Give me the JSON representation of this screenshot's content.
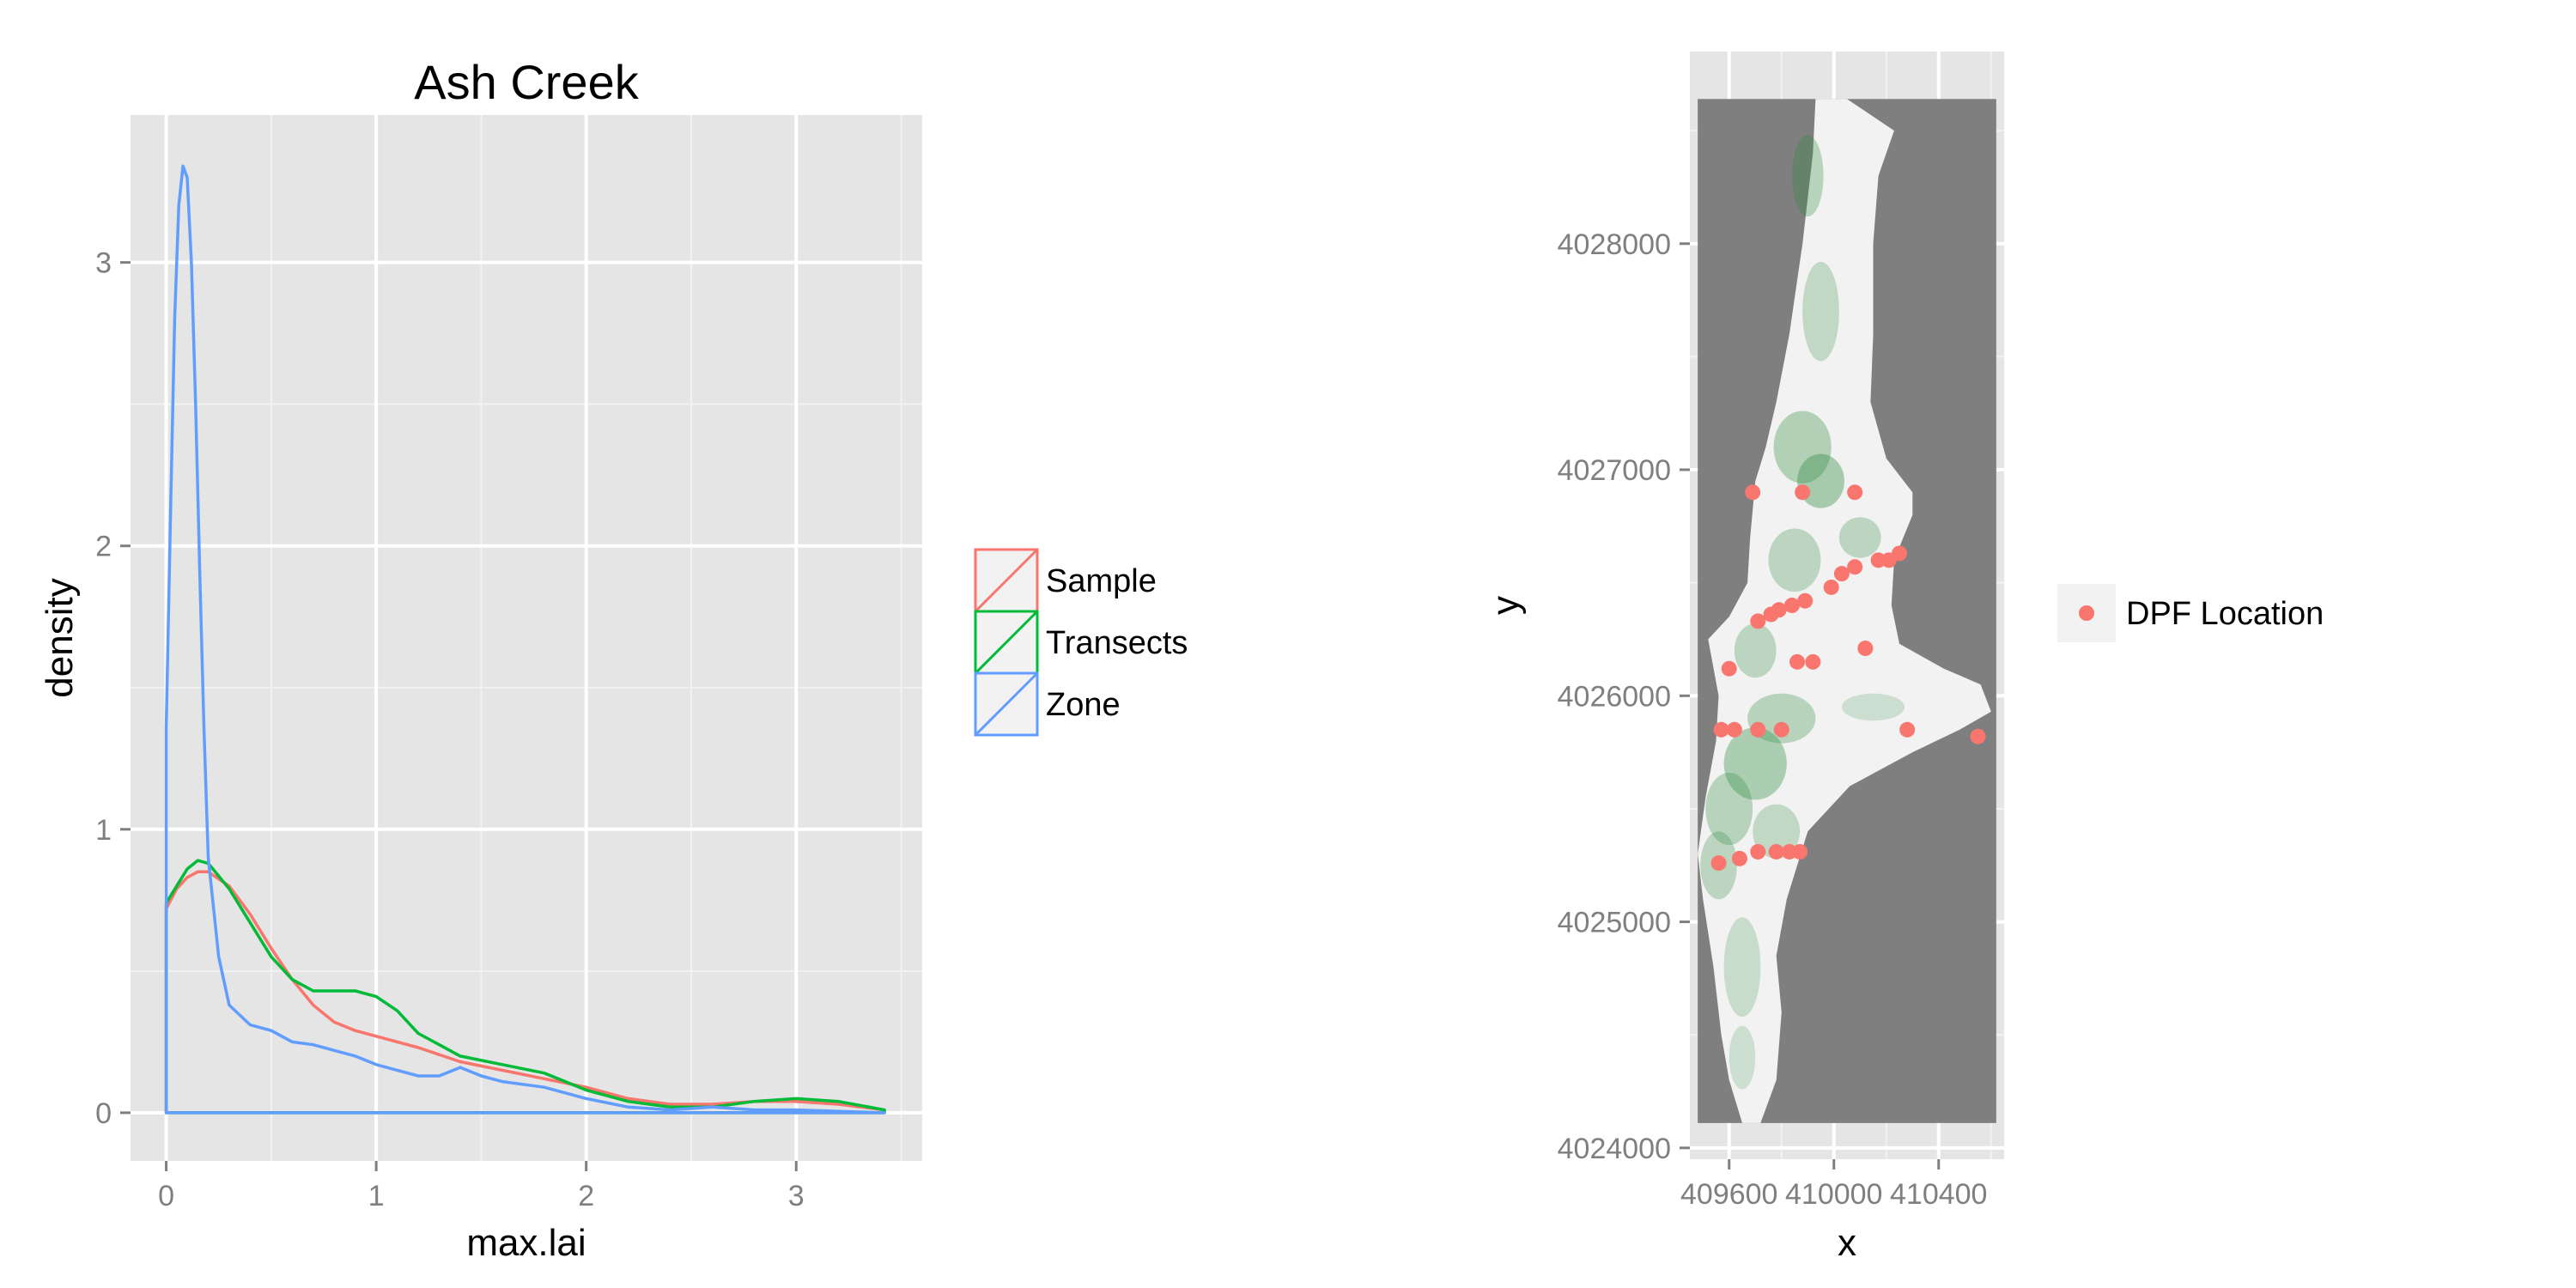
{
  "chart_data": [
    {
      "type": "line",
      "subtype": "density",
      "title": "Ash Creek",
      "xlabel": "max.lai",
      "ylabel": "density",
      "xlim": [
        -0.17,
        3.6
      ],
      "ylim": [
        -0.17,
        3.52
      ],
      "x_ticks": [
        0,
        1,
        2,
        3
      ],
      "x_tick_labels": [
        "0",
        "1",
        "2",
        "3"
      ],
      "y_ticks": [
        0,
        1,
        2,
        3
      ],
      "y_tick_labels": [
        "0",
        "1",
        "2",
        "3"
      ],
      "grid": true,
      "legend": {
        "placement": "right",
        "entries": [
          "Sample",
          "Transects",
          "Zone"
        ]
      },
      "series": [
        {
          "name": "Sample",
          "color": "#F8766D",
          "x": [
            0,
            0.05,
            0.1,
            0.15,
            0.2,
            0.3,
            0.4,
            0.5,
            0.6,
            0.7,
            0.8,
            0.9,
            1.0,
            1.2,
            1.4,
            1.6,
            1.8,
            2.0,
            2.2,
            2.4,
            2.6,
            2.8,
            3.0,
            3.2,
            3.42
          ],
          "y": [
            0.72,
            0.79,
            0.83,
            0.85,
            0.85,
            0.8,
            0.7,
            0.58,
            0.47,
            0.38,
            0.32,
            0.29,
            0.27,
            0.23,
            0.18,
            0.15,
            0.12,
            0.09,
            0.05,
            0.03,
            0.03,
            0.04,
            0.04,
            0.03,
            0.01
          ]
        },
        {
          "name": "Transects",
          "color": "#00BA38",
          "x": [
            0,
            0.05,
            0.1,
            0.15,
            0.2,
            0.3,
            0.4,
            0.5,
            0.6,
            0.7,
            0.8,
            0.9,
            1.0,
            1.1,
            1.2,
            1.4,
            1.6,
            1.8,
            2.0,
            2.2,
            2.4,
            2.6,
            2.8,
            3.0,
            3.2,
            3.42
          ],
          "y": [
            0.74,
            0.8,
            0.86,
            0.89,
            0.88,
            0.79,
            0.67,
            0.55,
            0.47,
            0.43,
            0.43,
            0.43,
            0.41,
            0.36,
            0.28,
            0.2,
            0.17,
            0.14,
            0.08,
            0.04,
            0.02,
            0.02,
            0.04,
            0.05,
            0.04,
            0.01
          ]
        },
        {
          "name": "Zone",
          "color": "#619CFF",
          "x": [
            0,
            0.02,
            0.04,
            0.06,
            0.08,
            0.1,
            0.12,
            0.14,
            0.16,
            0.18,
            0.2,
            0.25,
            0.3,
            0.4,
            0.5,
            0.6,
            0.7,
            0.8,
            0.9,
            1.0,
            1.1,
            1.2,
            1.3,
            1.4,
            1.5,
            1.6,
            1.8,
            2.0,
            2.2,
            2.4,
            2.6,
            2.8,
            3.0,
            3.42
          ],
          "y": [
            1.36,
            2.1,
            2.8,
            3.2,
            3.34,
            3.3,
            3.0,
            2.5,
            1.9,
            1.35,
            0.9,
            0.55,
            0.38,
            0.31,
            0.29,
            0.25,
            0.24,
            0.22,
            0.2,
            0.17,
            0.15,
            0.13,
            0.13,
            0.16,
            0.13,
            0.11,
            0.09,
            0.05,
            0.02,
            0.01,
            0.02,
            0.01,
            0.01,
            0.0
          ]
        }
      ]
    },
    {
      "type": "scatter",
      "subtype": "raster-map",
      "xlabel": "x",
      "ylabel": "y",
      "xlim": [
        409450,
        410650
      ],
      "ylim": [
        4023950,
        4028850
      ],
      "x_ticks": [
        409600,
        410000,
        410400
      ],
      "x_tick_labels": [
        "409600",
        "410000",
        "410400"
      ],
      "y_ticks": [
        4024000,
        4025000,
        4026000,
        4027000,
        4028000
      ],
      "y_tick_labels": [
        "4024000",
        "4025000",
        "4026000",
        "4027000",
        "4028000"
      ],
      "grid": true,
      "background_fill": "#7F7F7F",
      "raster_low_color": "#F2F2F2",
      "raster_high_color": "#2E8B3E",
      "legend": {
        "placement": "right",
        "entries": [
          "DPF Location"
        ]
      },
      "series": [
        {
          "name": "DPF Location",
          "color": "#F8766D",
          "points": [
            [
              409690,
              4026900
            ],
            [
              409880,
              4026900
            ],
            [
              410080,
              4026900
            ],
            [
              410250,
              4026630
            ],
            [
              410210,
              4026600
            ],
            [
              410170,
              4026600
            ],
            [
              410080,
              4026570
            ],
            [
              410030,
              4026540
            ],
            [
              409990,
              4026480
            ],
            [
              409890,
              4026420
            ],
            [
              409840,
              4026400
            ],
            [
              409790,
              4026380
            ],
            [
              409760,
              4026360
            ],
            [
              409710,
              4026330
            ],
            [
              410120,
              4026210
            ],
            [
              409860,
              4026150
            ],
            [
              409920,
              4026150
            ],
            [
              409600,
              4026120
            ],
            [
              409570,
              4025850
            ],
            [
              409620,
              4025850
            ],
            [
              409710,
              4025850
            ],
            [
              409800,
              4025850
            ],
            [
              410280,
              4025850
            ],
            [
              410550,
              4025820
            ],
            [
              409710,
              4025310
            ],
            [
              409780,
              4025310
            ],
            [
              409830,
              4025310
            ],
            [
              409870,
              4025310
            ],
            [
              409640,
              4025280
            ],
            [
              409560,
              4025260
            ]
          ]
        }
      ]
    }
  ]
}
